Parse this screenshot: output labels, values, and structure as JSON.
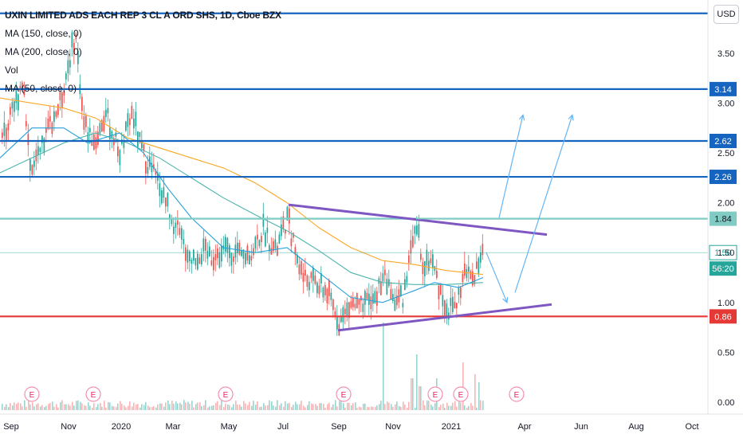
{
  "header": {
    "title": "UXIN LIMITED ADS EACH REP 3 CL A ORD SHS, 1D, Cboe BZX",
    "indicators": [
      "MA (150, close, 0)",
      "MA (200, close, 0)",
      "Vol",
      "MA (50, close, 0)"
    ],
    "currency": "USD"
  },
  "chart_data": {
    "type": "candlestick",
    "title": "UXIN LIMITED ADS EACH REP 3 CL A ORD SHS, 1D, Cboe BZX",
    "price_axis": {
      "ticks": [
        3.5,
        3.0,
        2.5,
        2.0,
        1.5,
        1.0,
        0.5,
        0.0
      ]
    },
    "time_axis": {
      "ticks": [
        "Sep",
        "Nov",
        "2020",
        "Mar",
        "May",
        "Jul",
        "Sep",
        "Nov",
        "2021",
        "Apr",
        "Jun",
        "Aug",
        "Oct"
      ]
    },
    "horizontal_levels": [
      {
        "price": 3.9,
        "color": "#1565c0",
        "tag": ""
      },
      {
        "price": 3.14,
        "color": "#1565c0",
        "tag": "3.14"
      },
      {
        "price": 2.62,
        "color": "#1565c0",
        "tag": "2.62"
      },
      {
        "price": 2.26,
        "color": "#1565c0",
        "tag": "2.26"
      },
      {
        "price": 1.84,
        "color": "#80cbc4",
        "tag": "1.84"
      },
      {
        "price": 0.86,
        "color": "#e53935",
        "tag": "0.86"
      }
    ],
    "last_price": {
      "price": "1.50",
      "countdown": "56:20",
      "color": "#26a69a"
    },
    "triangle": {
      "upper": [
        [
          "Jul",
          1.98
        ],
        [
          "Apr",
          1.68
        ]
      ],
      "lower": [
        [
          "Sep",
          0.72
        ],
        [
          "Apr",
          0.98
        ]
      ]
    },
    "projection_arrows": 4,
    "earnings_markers": 7,
    "earnings_label": "E",
    "colors": {
      "up": "#26a69a",
      "down": "#ef5350",
      "ma50": "#26a0da",
      "ma150": "#4db6ac",
      "ma200": "#f9a825",
      "triangle": "#7e57c2",
      "arrow": "#64b5f6"
    }
  }
}
